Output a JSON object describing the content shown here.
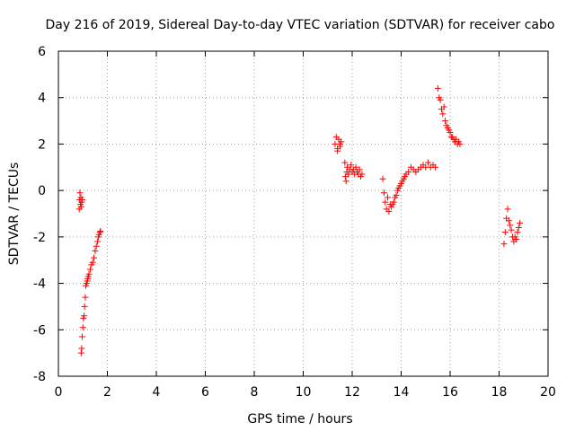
{
  "chart_data": {
    "type": "scatter",
    "title": "Day 216 of 2019, Sidereal Day-to-day VTEC variation (SDTVAR) for receiver cabo",
    "xlabel": "GPS time / hours",
    "ylabel": "SDTVAR / TECUs",
    "xlim": [
      0,
      20
    ],
    "ylim": [
      -8,
      6
    ],
    "grid": true,
    "marker": "+",
    "color": "#ff0000",
    "xticks": [
      0,
      2,
      4,
      6,
      8,
      10,
      12,
      14,
      16,
      18,
      20
    ],
    "yticks": [
      -8,
      -6,
      -4,
      -2,
      0,
      2,
      4,
      6
    ],
    "xtick_labels": [
      "0",
      "2",
      "4",
      "6",
      "8",
      "10",
      "12",
      "14",
      "16",
      "18",
      "20"
    ],
    "ytick_labels": [
      "-8",
      "-6",
      "-4",
      "-2",
      "0",
      "2",
      "4",
      "6"
    ],
    "series": [
      {
        "name": "cabo",
        "x": [
          0.85,
          0.87,
          0.88,
          0.9,
          0.92,
          0.93,
          0.95,
          0.97,
          0.93,
          0.95,
          0.97,
          1.0,
          1.02,
          1.05,
          1.07,
          1.1,
          1.12,
          1.15,
          1.18,
          1.2,
          1.22,
          1.25,
          1.3,
          1.35,
          1.4,
          1.45,
          1.5,
          1.55,
          1.6,
          1.63,
          1.66,
          1.7,
          1.72,
          11.3,
          11.35,
          11.4,
          11.45,
          11.5,
          11.55,
          11.4,
          11.5,
          11.7,
          11.72,
          11.75,
          11.78,
          11.8,
          11.85,
          11.9,
          11.95,
          12.0,
          12.05,
          12.1,
          12.15,
          12.2,
          12.25,
          12.3,
          12.35,
          12.4,
          13.25,
          13.3,
          13.35,
          13.4,
          13.45,
          13.5,
          13.55,
          13.6,
          13.65,
          13.7,
          13.75,
          13.8,
          13.85,
          13.9,
          13.95,
          14.0,
          14.05,
          14.1,
          14.15,
          14.2,
          14.3,
          14.4,
          14.5,
          14.6,
          14.7,
          14.8,
          14.9,
          15.0,
          15.1,
          15.2,
          15.3,
          15.4,
          15.5,
          15.55,
          15.6,
          15.65,
          15.7,
          15.75,
          15.8,
          15.85,
          15.9,
          15.95,
          16.0,
          16.05,
          16.1,
          16.15,
          16.2,
          16.25,
          16.3,
          16.35,
          16.4,
          18.2,
          18.25,
          18.3,
          18.35,
          18.4,
          18.45,
          18.5,
          18.55,
          18.6,
          18.65,
          18.7,
          18.75,
          18.8,
          18.85
        ],
        "y": [
          -0.8,
          -0.4,
          -0.1,
          -0.6,
          -0.3,
          -0.7,
          -0.5,
          -0.4,
          -7.0,
          -6.8,
          -6.3,
          -5.9,
          -5.5,
          -5.4,
          -5.0,
          -4.6,
          -4.1,
          -4.0,
          -3.9,
          -3.8,
          -3.7,
          -3.6,
          -3.4,
          -3.2,
          -3.1,
          -2.9,
          -2.6,
          -2.4,
          -2.2,
          -2.0,
          -1.9,
          -1.8,
          -1.75,
          2.0,
          2.3,
          1.7,
          2.2,
          1.9,
          2.1,
          1.8,
          2.0,
          1.2,
          0.6,
          0.4,
          0.8,
          1.0,
          0.7,
          0.9,
          1.1,
          0.8,
          0.9,
          0.7,
          1.0,
          0.8,
          0.7,
          0.9,
          0.6,
          0.7,
          0.5,
          -0.1,
          -0.5,
          -0.8,
          -0.3,
          -0.9,
          -0.6,
          -0.7,
          -0.6,
          -0.5,
          -0.3,
          -0.2,
          0.0,
          0.1,
          0.2,
          0.3,
          0.4,
          0.5,
          0.6,
          0.7,
          0.8,
          1.0,
          0.9,
          0.8,
          0.9,
          1.0,
          1.1,
          1.0,
          1.2,
          1.0,
          1.1,
          1.0,
          4.4,
          4.0,
          3.9,
          3.5,
          3.3,
          3.6,
          3.0,
          2.8,
          2.7,
          2.6,
          2.5,
          2.3,
          2.3,
          2.2,
          2.1,
          2.2,
          2.0,
          2.1,
          2.0,
          -2.3,
          -1.8,
          -1.2,
          -0.8,
          -1.3,
          -1.5,
          -1.7,
          -2.0,
          -2.2,
          -2.0,
          -2.1,
          -1.8,
          -1.6,
          -1.4
        ]
      }
    ]
  }
}
